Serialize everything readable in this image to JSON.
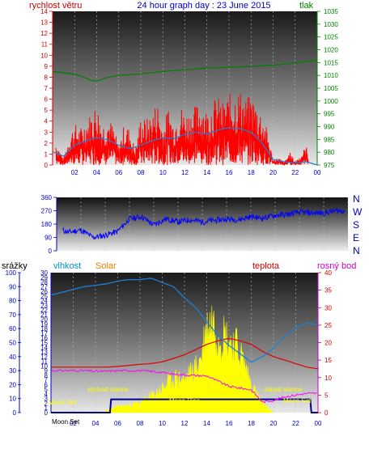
{
  "header": {
    "title": "24 hour graph day : 23 June 2015",
    "left_label": "rychlost větru",
    "right_label": "tlak"
  },
  "colors": {
    "wind": "#ff0000",
    "wind_avg": "#1e7fd6",
    "pressure": "#008000",
    "direction": "#0000ff",
    "humidity": "#1e7fd6",
    "temp": "#e00000",
    "dew": "#ff00ff",
    "solar": "#ffff00",
    "moon_line": "#000090",
    "axis_red": "#d00000",
    "axis_green": "#008000",
    "axis_blue": "#0000c0",
    "axis_orange": "#e08000",
    "axis_magenta": "#cc00cc",
    "axis_cyan": "#0090c0"
  },
  "chart_data": [
    {
      "id": "wind_pressure",
      "type": "line",
      "x_ticks": [
        "02",
        "04",
        "06",
        "08",
        "10",
        "12",
        "14",
        "16",
        "18",
        "20",
        "22",
        "00"
      ],
      "x_range_hours": [
        0,
        24
      ],
      "y_left": {
        "label": "rychlost větru",
        "range": [
          0,
          14
        ],
        "ticks": [
          0,
          1,
          2,
          3,
          4,
          5,
          6,
          7,
          8,
          9,
          10,
          11,
          12,
          13,
          14
        ]
      },
      "y_right": {
        "label": "tlak",
        "range": [
          975,
          1035
        ],
        "ticks": [
          975,
          980,
          985,
          990,
          995,
          1000,
          1005,
          1010,
          1015,
          1020,
          1025,
          1030,
          1035
        ]
      },
      "series": [
        {
          "name": "gust",
          "axis": "left",
          "x": [
            0,
            0.5,
            1,
            1.5,
            2,
            2.5,
            3,
            3.5,
            4,
            4.5,
            5,
            5.5,
            6,
            6.5,
            7,
            7.5,
            8,
            8.5,
            9,
            9.5,
            10,
            10.5,
            11,
            11.5,
            12,
            12.5,
            13,
            13.5,
            14,
            14.5,
            15,
            15.5,
            16,
            16.5,
            17,
            17.5,
            18,
            18.5,
            19,
            19.5,
            20,
            20.5,
            21,
            21.5,
            22,
            22.5,
            23,
            23.5,
            24
          ],
          "y": [
            2.5,
            1.5,
            0.5,
            2.3,
            3.2,
            2.8,
            3.5,
            4.0,
            4.8,
            3.2,
            3.8,
            3.0,
            1.5,
            3.2,
            2.8,
            1.2,
            3.8,
            3.5,
            4.0,
            5.0,
            2.8,
            4.5,
            3.2,
            4.8,
            4.0,
            4.2,
            4.6,
            5.0,
            4.2,
            5.0,
            5.2,
            4.8,
            5.5,
            5.6,
            5.8,
            5.0,
            5.4,
            4.8,
            4.0,
            2.6,
            0.4,
            0.6,
            0.2,
            1.0,
            0.3,
            0.8,
            1.5,
            0.0,
            0.0
          ]
        },
        {
          "name": "average",
          "axis": "left",
          "x": [
            0,
            1,
            2,
            3,
            4,
            5,
            6,
            7,
            8,
            9,
            10,
            11,
            12,
            13,
            14,
            15,
            16,
            17,
            18,
            19,
            20,
            21,
            22,
            23,
            24
          ],
          "y": [
            1.2,
            0.8,
            1.8,
            2.2,
            2.5,
            2.3,
            1.8,
            1.5,
            1.8,
            2.2,
            2.5,
            2.4,
            2.8,
            3.0,
            2.8,
            3.2,
            3.4,
            3.3,
            3.0,
            2.0,
            0.5,
            0.3,
            0.2,
            0.3,
            0.0
          ]
        },
        {
          "name": "pressure",
          "axis": "right",
          "x": [
            0,
            1,
            2,
            3,
            3.5,
            4,
            4.5,
            5,
            6,
            8,
            10,
            12,
            14,
            16,
            18,
            20,
            22,
            23,
            24
          ],
          "y": [
            1011.5,
            1011.0,
            1010.5,
            1009.0,
            1008.0,
            1007.8,
            1008.5,
            1009.2,
            1010.0,
            1010.6,
            1011.5,
            1012.2,
            1012.8,
            1013.2,
            1013.5,
            1014.0,
            1014.8,
            1015.4,
            1016.0
          ]
        }
      ]
    },
    {
      "id": "direction",
      "type": "line",
      "x_range_hours": [
        0,
        24
      ],
      "y_left": {
        "range": [
          0,
          360
        ],
        "ticks": [
          0,
          90,
          180,
          270,
          360
        ]
      },
      "compass": [
        "N",
        "W",
        "S",
        "E",
        "N"
      ],
      "series": [
        {
          "name": "direction",
          "x": [
            0,
            1,
            2,
            3,
            4,
            5,
            6,
            7,
            8,
            9,
            10,
            11,
            12,
            13,
            14,
            15,
            16,
            17,
            18,
            19,
            20,
            21,
            22,
            23,
            24
          ],
          "y": [
            150,
            125,
            140,
            90,
            105,
            130,
            215,
            230,
            175,
            215,
            195,
            210,
            195,
            205,
            215,
            210,
            230,
            220,
            240,
            245,
            260,
            255,
            255,
            270,
            270
          ]
        }
      ]
    },
    {
      "id": "humidity_solar_temp",
      "type": "area",
      "x_ticks": [
        "02",
        "04",
        "06",
        "08",
        "10",
        "12",
        "14",
        "16",
        "18",
        "20",
        "22",
        "00"
      ],
      "x_range_hours": [
        0,
        24
      ],
      "y_srazky": {
        "label": "srážky",
        "range": [
          0,
          100
        ],
        "ticks": [
          0,
          10,
          20,
          30,
          40,
          50,
          60,
          70,
          80,
          90,
          100
        ]
      },
      "y_vlhkost": {
        "label": "vlhkost",
        "range": [
          0,
          30
        ],
        "ticks": [
          0,
          1,
          2,
          3,
          4,
          5,
          6,
          7,
          8,
          9,
          10,
          11,
          12,
          13,
          14,
          15,
          16,
          17,
          18,
          19,
          20,
          21,
          22,
          23,
          24,
          25,
          26,
          27,
          28,
          29,
          30
        ]
      },
      "y_solar_label": "Solar",
      "y_teplota": {
        "label": "teplota",
        "range": [
          0,
          40
        ],
        "ticks": [
          0,
          5,
          10,
          15,
          20,
          25,
          30,
          35,
          40
        ]
      },
      "y_dew_label": "rosný bod",
      "annotations": [
        "východ slunce",
        "západ slunce",
        "Moon Set",
        "Moon Rise",
        "Moon Set"
      ],
      "series": [
        {
          "name": "humidity",
          "axis": "srazky",
          "x": [
            0,
            1,
            2,
            3,
            4,
            5,
            6,
            7,
            8,
            9,
            10,
            11,
            12,
            13,
            14,
            15,
            16,
            17,
            18,
            19,
            20,
            21,
            22,
            23,
            24
          ],
          "y": [
            84,
            86,
            88,
            90,
            91,
            92,
            94,
            95,
            95,
            96,
            93,
            90,
            82,
            75,
            65,
            55,
            48,
            42,
            36,
            40,
            46,
            54,
            61,
            64,
            63
          ]
        },
        {
          "name": "solar",
          "axis": "vlhkost",
          "x": [
            0,
            4.5,
            5,
            6,
            7,
            8,
            9,
            10,
            11,
            12,
            13,
            13.5,
            14,
            14.5,
            15,
            15.5,
            16,
            16.5,
            17,
            17.5,
            18,
            18.5,
            19,
            19.5,
            20,
            24
          ],
          "y": [
            0,
            0,
            0.5,
            1.5,
            1.8,
            2.5,
            4.0,
            6.0,
            8.5,
            8.0,
            11,
            14,
            21,
            23,
            20,
            19.5,
            18,
            17,
            15,
            11,
            7,
            4.5,
            2.5,
            1.0,
            0,
            0
          ]
        },
        {
          "name": "temperature",
          "axis": "teplota",
          "x": [
            0,
            1,
            2,
            3,
            4,
            5,
            6,
            7,
            8,
            9,
            10,
            11,
            12,
            13,
            14,
            15,
            16,
            17,
            18,
            19,
            20,
            21,
            22,
            23,
            24
          ],
          "y": [
            13,
            13,
            13,
            13,
            13,
            13,
            13.2,
            13.5,
            13.8,
            14,
            14.5,
            15.5,
            16.5,
            18.0,
            19.5,
            20.5,
            21.2,
            20.5,
            19.5,
            17.5,
            16.0,
            15.0,
            14.0,
            13.0,
            12.5
          ]
        },
        {
          "name": "dew_point",
          "axis": "teplota",
          "x": [
            0,
            1,
            2,
            3,
            4,
            5,
            6,
            7,
            8,
            9,
            10,
            11,
            12,
            13,
            14,
            15,
            16,
            17,
            18,
            19,
            20,
            21,
            22,
            23,
            24
          ],
          "y": [
            12,
            12,
            12,
            12,
            11.8,
            11.8,
            12,
            12,
            12,
            11.8,
            11.5,
            11,
            10.8,
            10.6,
            10.5,
            9,
            7.5,
            7,
            6.5,
            3,
            3.5,
            4.5,
            5,
            5.5,
            5.5
          ]
        },
        {
          "name": "moon_daylight",
          "axis": "srazky",
          "x": [
            0,
            5.3,
            5.4,
            23.3,
            23.4,
            24
          ],
          "y": [
            0,
            0,
            9.5,
            9.5,
            0,
            0
          ]
        }
      ]
    }
  ],
  "panel3_labels": {
    "srazky": "srážky",
    "vlhkost": "vlhkost",
    "solar": "Solar",
    "teplota": "teplota",
    "rosny": "rosný bod",
    "vychod": "východ slunce",
    "zapad": "západ slunce",
    "moonset1": "Moon Set",
    "moonrise": "Moon Rise",
    "moonset2": "Moon Set",
    "moonset_bottom": "Moon Set"
  }
}
